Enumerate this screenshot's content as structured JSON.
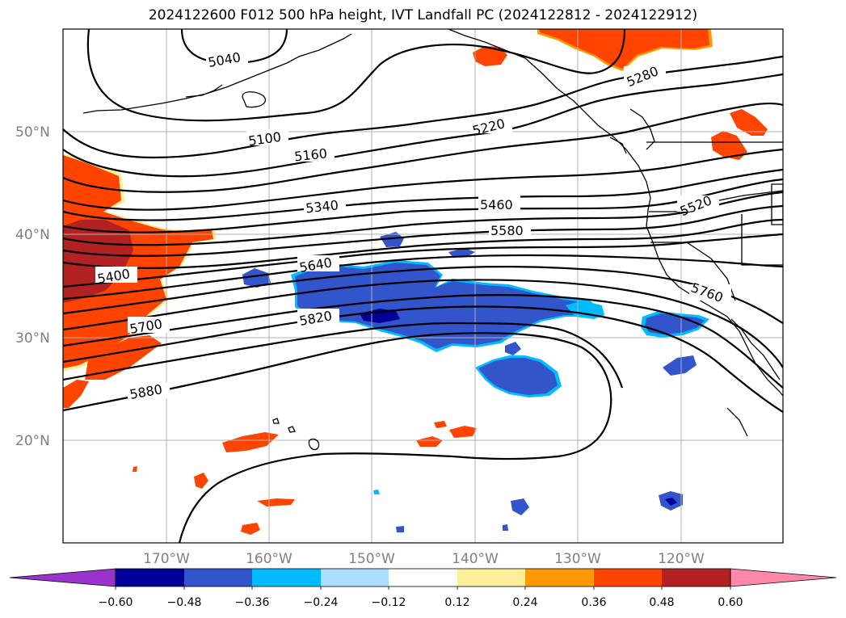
{
  "title": "2024122600 F012 500 hPa height, IVT Landfall PC (2024122812 - 2024122912)",
  "map": {
    "lat_labels": [
      "50°N",
      "40°N",
      "30°N",
      "20°N"
    ],
    "lon_labels": [
      "170°W",
      "160°W",
      "150°W",
      "140°W",
      "130°W",
      "120°W"
    ],
    "contour_labels": [
      "5040",
      "5100",
      "5160",
      "5220",
      "5280",
      "5340",
      "5460",
      "5520",
      "5580",
      "5400",
      "5640",
      "5700",
      "5760",
      "5820",
      "5880"
    ],
    "grid": true
  },
  "colorbar": {
    "ticks": [
      "−0.60",
      "−0.48",
      "−0.36",
      "−0.24",
      "−0.12",
      "0.12",
      "0.24",
      "0.36",
      "0.48",
      "0.60"
    ],
    "colors": {
      "under": "#9933cc",
      "c1": "#000099",
      "c2": "#3355cc",
      "c3": "#00bbff",
      "c4": "#aaddff",
      "c5": "#ffffff",
      "c6": "#ffee99",
      "c7": "#ff9900",
      "c8": "#ff4400",
      "c9": "#b22222",
      "over": "#ff88aa"
    }
  }
}
